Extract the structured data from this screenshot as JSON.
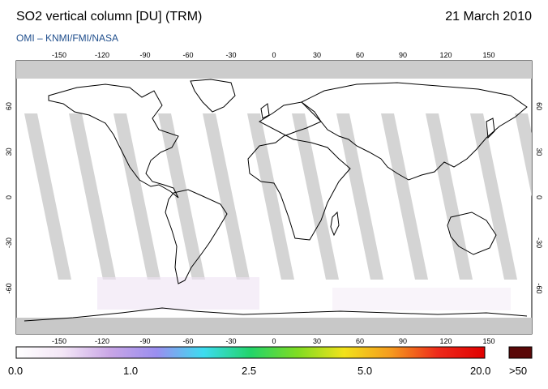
{
  "header": {
    "title": "SO2 vertical column [DU] (TRM)",
    "date": "21 March 2010",
    "subtitle": "OMI  –  KNMI/FMI/NASA"
  },
  "map": {
    "projection": "equirectangular",
    "lon_range": [
      -180,
      180
    ],
    "lat_range": [
      -90,
      90
    ],
    "lon_ticks": [
      "-150",
      "-120",
      "-90",
      "-60",
      "-30",
      "0",
      "30",
      "60",
      "90",
      "120",
      "150"
    ],
    "lat_ticks": [
      "60",
      "30",
      "0",
      "-30",
      "-60"
    ],
    "ocean_color": "#ffffff",
    "nodata_color": "#cccccc",
    "coastline_color": "#000000"
  },
  "colorbar": {
    "labels": [
      "0.0",
      "1.0",
      "2.5",
      "5.0",
      "20.0"
    ],
    "overflow_label": ">50",
    "colors": [
      "#ffffff",
      "#f3e6f6",
      "#c9a6e6",
      "#9a8ef0",
      "#3ddcf0",
      "#22d46a",
      "#7fdc22",
      "#f2e21a",
      "#f59a1e",
      "#ee2a1a",
      "#e00000"
    ],
    "overflow_color": "#5a0808"
  }
}
